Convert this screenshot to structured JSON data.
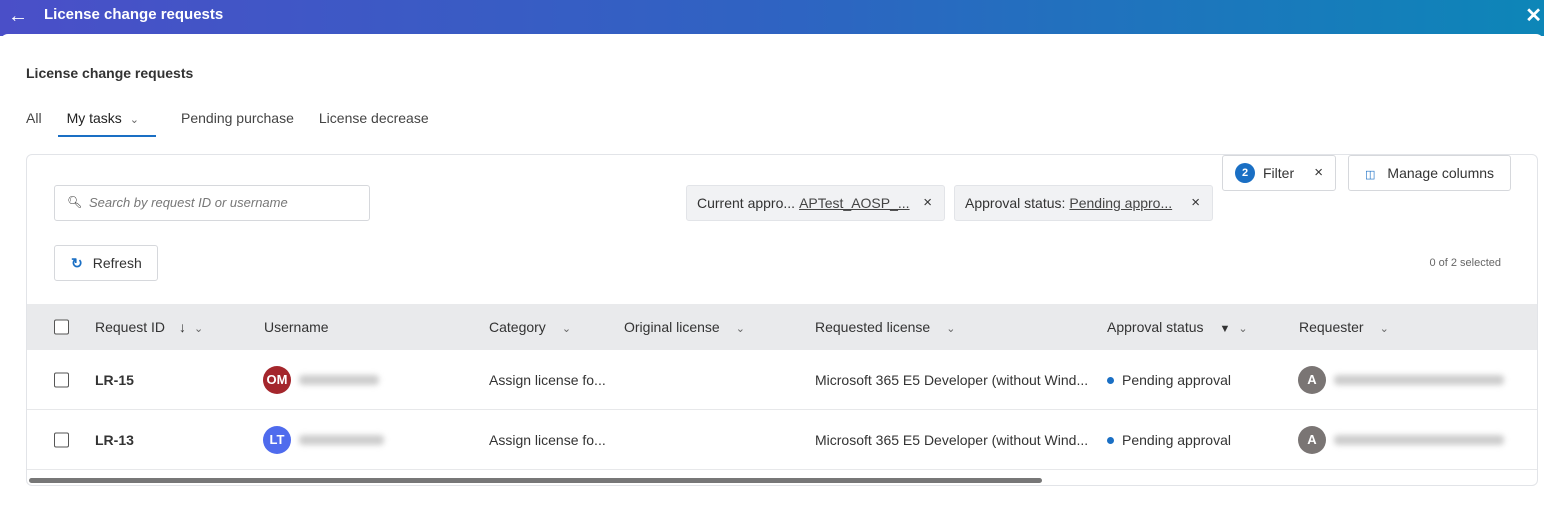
{
  "header": {
    "title": "License change requests",
    "back_icon": "arrow-left-icon",
    "close_icon": "close-icon"
  },
  "page": {
    "title": "License change requests"
  },
  "tabs": [
    {
      "label": "All"
    },
    {
      "label": "My tasks"
    },
    {
      "label": "Pending purchase"
    },
    {
      "label": "License decrease"
    }
  ],
  "toolbar": {
    "search_placeholder": "Search by request ID or username",
    "refresh": "Refresh",
    "filter": "Filter",
    "filter_count": "2",
    "manage_columns": "Manage columns",
    "selected": "0 of 2 selected"
  },
  "chips": [
    {
      "label": "Current appro...",
      "value": "APTest_AOSP_..."
    },
    {
      "label": "Approval status:",
      "value": "Pending appro..."
    }
  ],
  "columns": [
    "Request ID",
    "Username",
    "Category",
    "Original license",
    "Requested license",
    "Approval status",
    "Requester"
  ],
  "rows": [
    {
      "id": "LR-15",
      "initials": "OM",
      "avatar_color": "#a4262c",
      "category": "Assign license fo...",
      "original": "",
      "requested": "Microsoft 365 E5 Developer (without Wind...",
      "status": "Pending approval",
      "requester_initial": "A"
    },
    {
      "id": "LR-13",
      "initials": "LT",
      "avatar_color": "#4f6bed",
      "category": "Assign license fo...",
      "original": "",
      "requested": "Microsoft 365 E5 Developer (without Wind...",
      "status": "Pending approval",
      "requester_initial": "A"
    }
  ],
  "colors": {
    "accent": "#1a6fc4",
    "status_dot": "#1a6fc4"
  }
}
